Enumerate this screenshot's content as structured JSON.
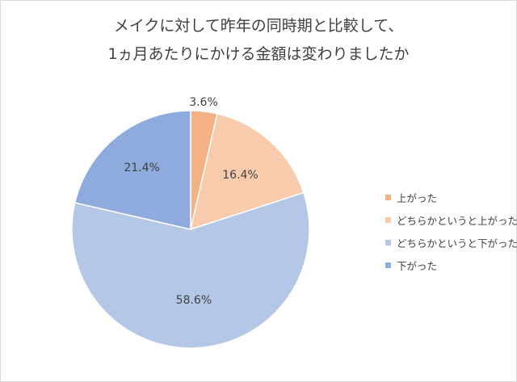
{
  "chart_data": {
    "type": "pie",
    "title_lines": [
      "メイクに対して昨年の同時期と比較して、",
      "1ヵ月あたりにかける金額は変わりましたか"
    ],
    "categories": [
      "上がった",
      "どちらかというと上がった",
      "どちらかというと下がった",
      "下がった"
    ],
    "values": [
      3.6,
      16.4,
      58.6,
      21.4
    ],
    "data_labels": [
      "3.6%",
      "16.4%",
      "58.6%",
      "21.4%"
    ],
    "colors": [
      "#f4b183",
      "#f8cbad",
      "#b4c7e7",
      "#8faadc"
    ],
    "start_angle": "12 o'clock",
    "direction": "clockwise",
    "legend_position": "right"
  }
}
